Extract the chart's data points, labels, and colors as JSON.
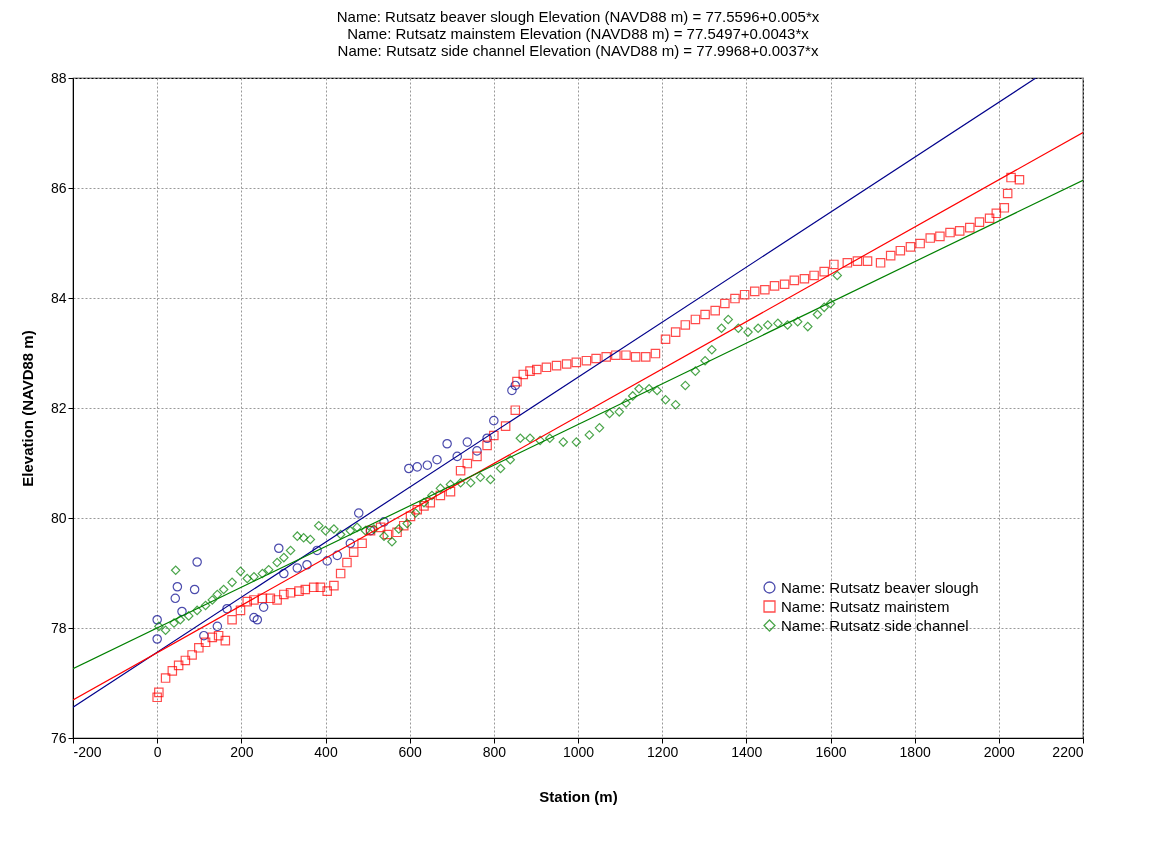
{
  "chart_data": {
    "type": "scatter",
    "title": "Name: Rutsatz beaver slough Elevation (NAVD88 m) = 77.5596+0.005*x\nName: Rutsatz mainstem Elevation (NAVD88 m) = 77.5497+0.0043*x\nName: Rutsatz side channel Elevation (NAVD88 m) = 77.9968+0.0037*x",
    "xlabel": "Station (m)",
    "ylabel": "Elevation (NAVD88 m)",
    "xlim": [
      -200,
      2200
    ],
    "ylim": [
      76,
      88
    ],
    "xticks": [
      -200,
      0,
      200,
      400,
      600,
      800,
      1000,
      1200,
      1400,
      1600,
      1800,
      2000,
      2200
    ],
    "yticks": [
      76,
      78,
      80,
      82,
      84,
      86,
      88
    ],
    "grid": true,
    "legend": "bottom right",
    "series": [
      {
        "name": "Name: Rutsatz beaver slough",
        "color": "#00008b",
        "marker": "circle",
        "x": [
          0,
          0,
          43,
          48,
          59,
          95,
          89,
          111,
          143,
          166,
          230,
          238,
          253,
          289,
          301,
          333,
          356,
          380,
          404,
          428,
          459,
          479,
          507,
          539,
          598,
          618,
          642,
          665,
          689,
          713,
          737,
          760,
          784,
          800,
          843,
          851
        ],
        "values": [
          78.15,
          77.8,
          78.54,
          78.75,
          78.3,
          79.2,
          78.7,
          77.86,
          78.03,
          78.35,
          78.19,
          78.15,
          78.38,
          79.45,
          78.99,
          79.09,
          79.15,
          79.41,
          79.22,
          79.32,
          79.54,
          80.09,
          79.77,
          79.93,
          80.9,
          80.93,
          80.96,
          81.06,
          81.35,
          81.12,
          81.38,
          81.22,
          81.45,
          81.77,
          82.32,
          82.41
        ]
      },
      {
        "name": "Name: Rutsatz mainstem",
        "color": "#ff0000",
        "marker": "square",
        "x": [
          0,
          4,
          20,
          36,
          51,
          67,
          83,
          99,
          115,
          131,
          146,
          162,
          178,
          198,
          214,
          230,
          250,
          269,
          285,
          301,
          317,
          337,
          352,
          372,
          388,
          404,
          420,
          436,
          451,
          467,
          487,
          507,
          531,
          547,
          570,
          586,
          602,
          618,
          634,
          649,
          673,
          697,
          721,
          737,
          760,
          784,
          800,
          828,
          851,
          855,
          870,
          886,
          902,
          925,
          949,
          973,
          996,
          1020,
          1043,
          1067,
          1090,
          1114,
          1137,
          1161,
          1184,
          1208,
          1232,
          1255,
          1279,
          1302,
          1326,
          1349,
          1373,
          1396,
          1420,
          1444,
          1467,
          1491,
          1514,
          1538,
          1561,
          1585,
          1608,
          1640,
          1664,
          1688,
          1719,
          1743,
          1766,
          1790,
          1813,
          1837,
          1860,
          1884,
          1907,
          1931,
          1954,
          1978,
          1994,
          2013,
          2021,
          2029,
          2049
        ],
        "values": [
          76.74,
          76.83,
          77.09,
          77.22,
          77.32,
          77.41,
          77.51,
          77.64,
          77.74,
          77.83,
          77.86,
          77.77,
          78.15,
          78.32,
          78.48,
          78.51,
          78.54,
          78.54,
          78.51,
          78.61,
          78.64,
          78.67,
          78.7,
          78.74,
          78.74,
          78.67,
          78.77,
          78.99,
          79.19,
          79.38,
          79.54,
          79.77,
          79.83,
          79.7,
          79.74,
          79.86,
          80.03,
          80.15,
          80.22,
          80.28,
          80.41,
          80.48,
          80.86,
          80.99,
          81.12,
          81.32,
          81.5,
          81.67,
          81.96,
          82.48,
          82.61,
          82.67,
          82.7,
          82.74,
          82.77,
          82.8,
          82.83,
          82.86,
          82.9,
          82.93,
          82.96,
          82.96,
          82.93,
          82.93,
          82.99,
          83.25,
          83.38,
          83.51,
          83.61,
          83.7,
          83.77,
          83.9,
          83.99,
          84.06,
          84.12,
          84.15,
          84.22,
          84.25,
          84.32,
          84.35,
          84.41,
          84.48,
          84.61,
          84.64,
          84.67,
          84.67,
          84.64,
          84.77,
          84.86,
          84.93,
          84.99,
          85.09,
          85.12,
          85.19,
          85.22,
          85.28,
          85.38,
          85.45,
          85.54,
          85.64,
          85.9,
          86.19,
          86.15
        ]
      },
      {
        "name": "Name: Rutsatz side channel",
        "color": "#008000",
        "marker": "diamond",
        "x": [
          44,
          4,
          20,
          40,
          55,
          75,
          95,
          115,
          131,
          143,
          158,
          178,
          198,
          214,
          230,
          250,
          265,
          285,
          301,
          317,
          333,
          348,
          364,
          384,
          400,
          420,
          436,
          459,
          475,
          495,
          515,
          539,
          558,
          574,
          594,
          614,
          634,
          653,
          673,
          697,
          721,
          745,
          768,
          792,
          816,
          839,
          863,
          886,
          910,
          933,
          965,
          996,
          1027,
          1051,
          1075,
          1098,
          1114,
          1130,
          1145,
          1169,
          1188,
          1208,
          1232,
          1255,
          1279,
          1302,
          1318,
          1341,
          1357,
          1381,
          1404,
          1428,
          1451,
          1475,
          1498,
          1522,
          1546,
          1569,
          1585,
          1600,
          1616
        ],
        "values": [
          79.05,
          78.03,
          77.96,
          78.09,
          78.15,
          78.22,
          78.32,
          78.41,
          78.51,
          78.61,
          78.7,
          78.83,
          79.03,
          78.9,
          78.93,
          78.99,
          79.06,
          79.19,
          79.28,
          79.41,
          79.67,
          79.64,
          79.61,
          79.86,
          79.77,
          79.8,
          79.7,
          79.77,
          79.83,
          79.77,
          79.8,
          79.67,
          79.57,
          79.8,
          79.9,
          80.09,
          80.28,
          80.41,
          80.54,
          80.61,
          80.64,
          80.64,
          80.74,
          80.7,
          80.9,
          81.06,
          81.45,
          81.45,
          81.41,
          81.45,
          81.38,
          81.38,
          81.51,
          81.64,
          81.9,
          81.93,
          82.09,
          82.22,
          82.35,
          82.35,
          82.32,
          82.15,
          82.06,
          82.41,
          82.67,
          82.86,
          83.06,
          83.45,
          83.61,
          83.45,
          83.38,
          83.45,
          83.51,
          83.54,
          83.51,
          83.57,
          83.48,
          83.7,
          83.83,
          83.9,
          84.41
        ]
      },
      {
        "type": "line",
        "color": "#00008b",
        "x": [
          -200,
          2088
        ],
        "values": [
          76.56,
          88
        ]
      },
      {
        "type": "line",
        "color": "#ff0000",
        "x": [
          -200,
          2200
        ],
        "values": [
          76.69,
          87.01
        ]
      },
      {
        "type": "line",
        "color": "#008000",
        "x": [
          -200,
          2200
        ],
        "values": [
          77.26,
          86.14
        ]
      }
    ]
  }
}
